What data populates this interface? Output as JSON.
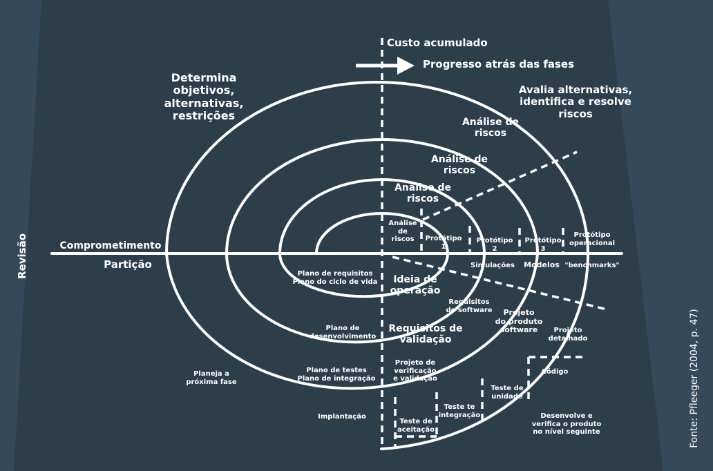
{
  "colors": {
    "background": "#2d3e4b",
    "background_shade": "#34495a",
    "line": "#ffffff",
    "text": "#ffffff"
  },
  "diagram": {
    "axis_top": "Custo acumulado",
    "progress_arrow": "Progresso atrás das fases",
    "quadrant_top_left": "Determina\nobjetivos,\nalternativas,\nrestrições",
    "quadrant_top_right": "Avalia alternativas,\nidentifica e resolve\nriscos",
    "risk_analysis": [
      "Análise de\nriscos",
      "Análise de\nriscos",
      "Análise de\nriscos",
      "Análise\nde\nriscos"
    ],
    "prototypes": [
      "Protótipo\n1",
      "Protótipo\n2",
      "Protótipo\n3",
      "Protótipo\noperacional"
    ],
    "left_axis_top": "Comprometimento",
    "left_axis_bottom": "Partição",
    "revision": "Revisão",
    "simulacoes": "Simulações",
    "modelos": "Modelos",
    "benchmarks": "\"benchmarks\"",
    "plano_requisitos": "Plano de requisitos\nPlano do ciclo de vida",
    "ideia_operacao": "Ideia de\noperação",
    "requisitos_software": "Requisitos\nde software",
    "plano_desenvolvimento": "Plano de\ndesenvolvimento",
    "requisitos_validacao": "Requisitos de\nvalidação",
    "projeto_produto": "Projeto\ndo produto\nsoftware",
    "projeto_detalhado": "Projeto\ndetalhado",
    "plano_testes": "Plano de testes\nPlano de integração",
    "projeto_verificacao": "Projeto de\nverificação\ne validação",
    "planeja": "Planeja a\npróxima fase",
    "codigo": "Código",
    "teste_unidade": "Teste de\nunidade",
    "teste_integracao": "Teste te\nintegração",
    "teste_aceitacao": "Teste de\naceitação",
    "implantacao": "Implantação",
    "desenvolve": "Desenvolve e\nverifica o produto\nno nível seguinte",
    "source": "Fonte: Pfleeger (2004, p. 47)"
  }
}
